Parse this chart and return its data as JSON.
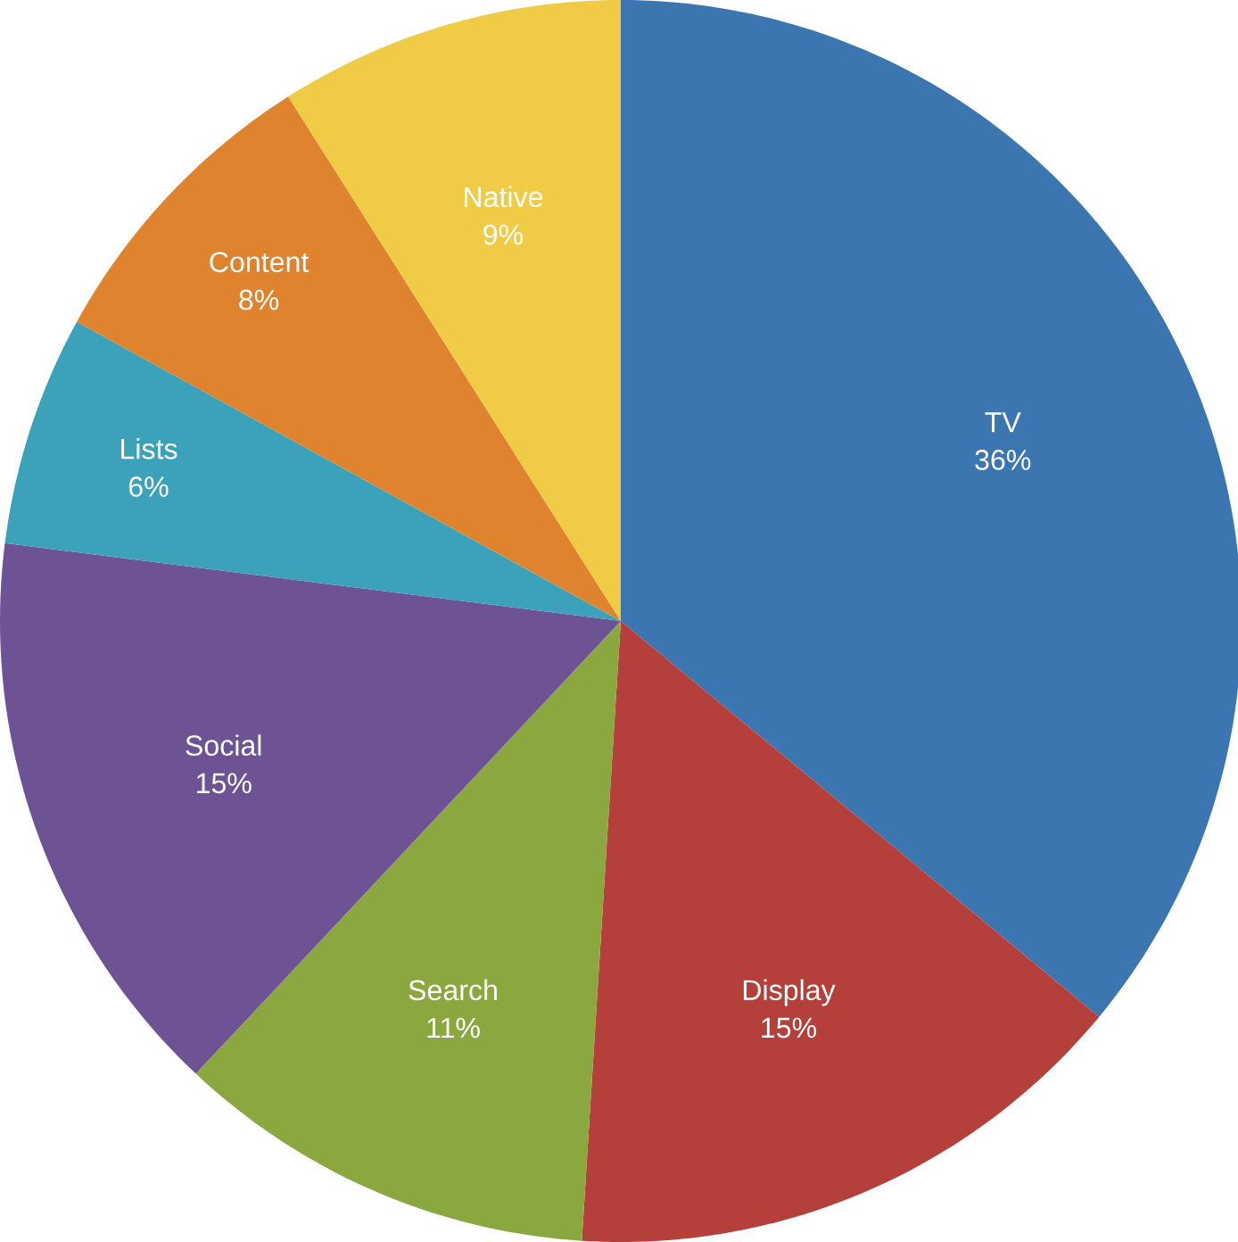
{
  "chart_data": {
    "type": "pie",
    "categories": [
      "TV",
      "Display",
      "Search",
      "Social",
      "Lists",
      "Content",
      "Native"
    ],
    "values": [
      36,
      15,
      11,
      15,
      6,
      8,
      9
    ],
    "value_labels": [
      "36%",
      "15%",
      "11%",
      "15%",
      "6%",
      "8%",
      "9%"
    ],
    "colors": [
      "#3b76b1",
      "#b5403b",
      "#8aa83f",
      "#6d5393",
      "#3ba2ba",
      "#e0832f",
      "#f0cb45"
    ]
  }
}
